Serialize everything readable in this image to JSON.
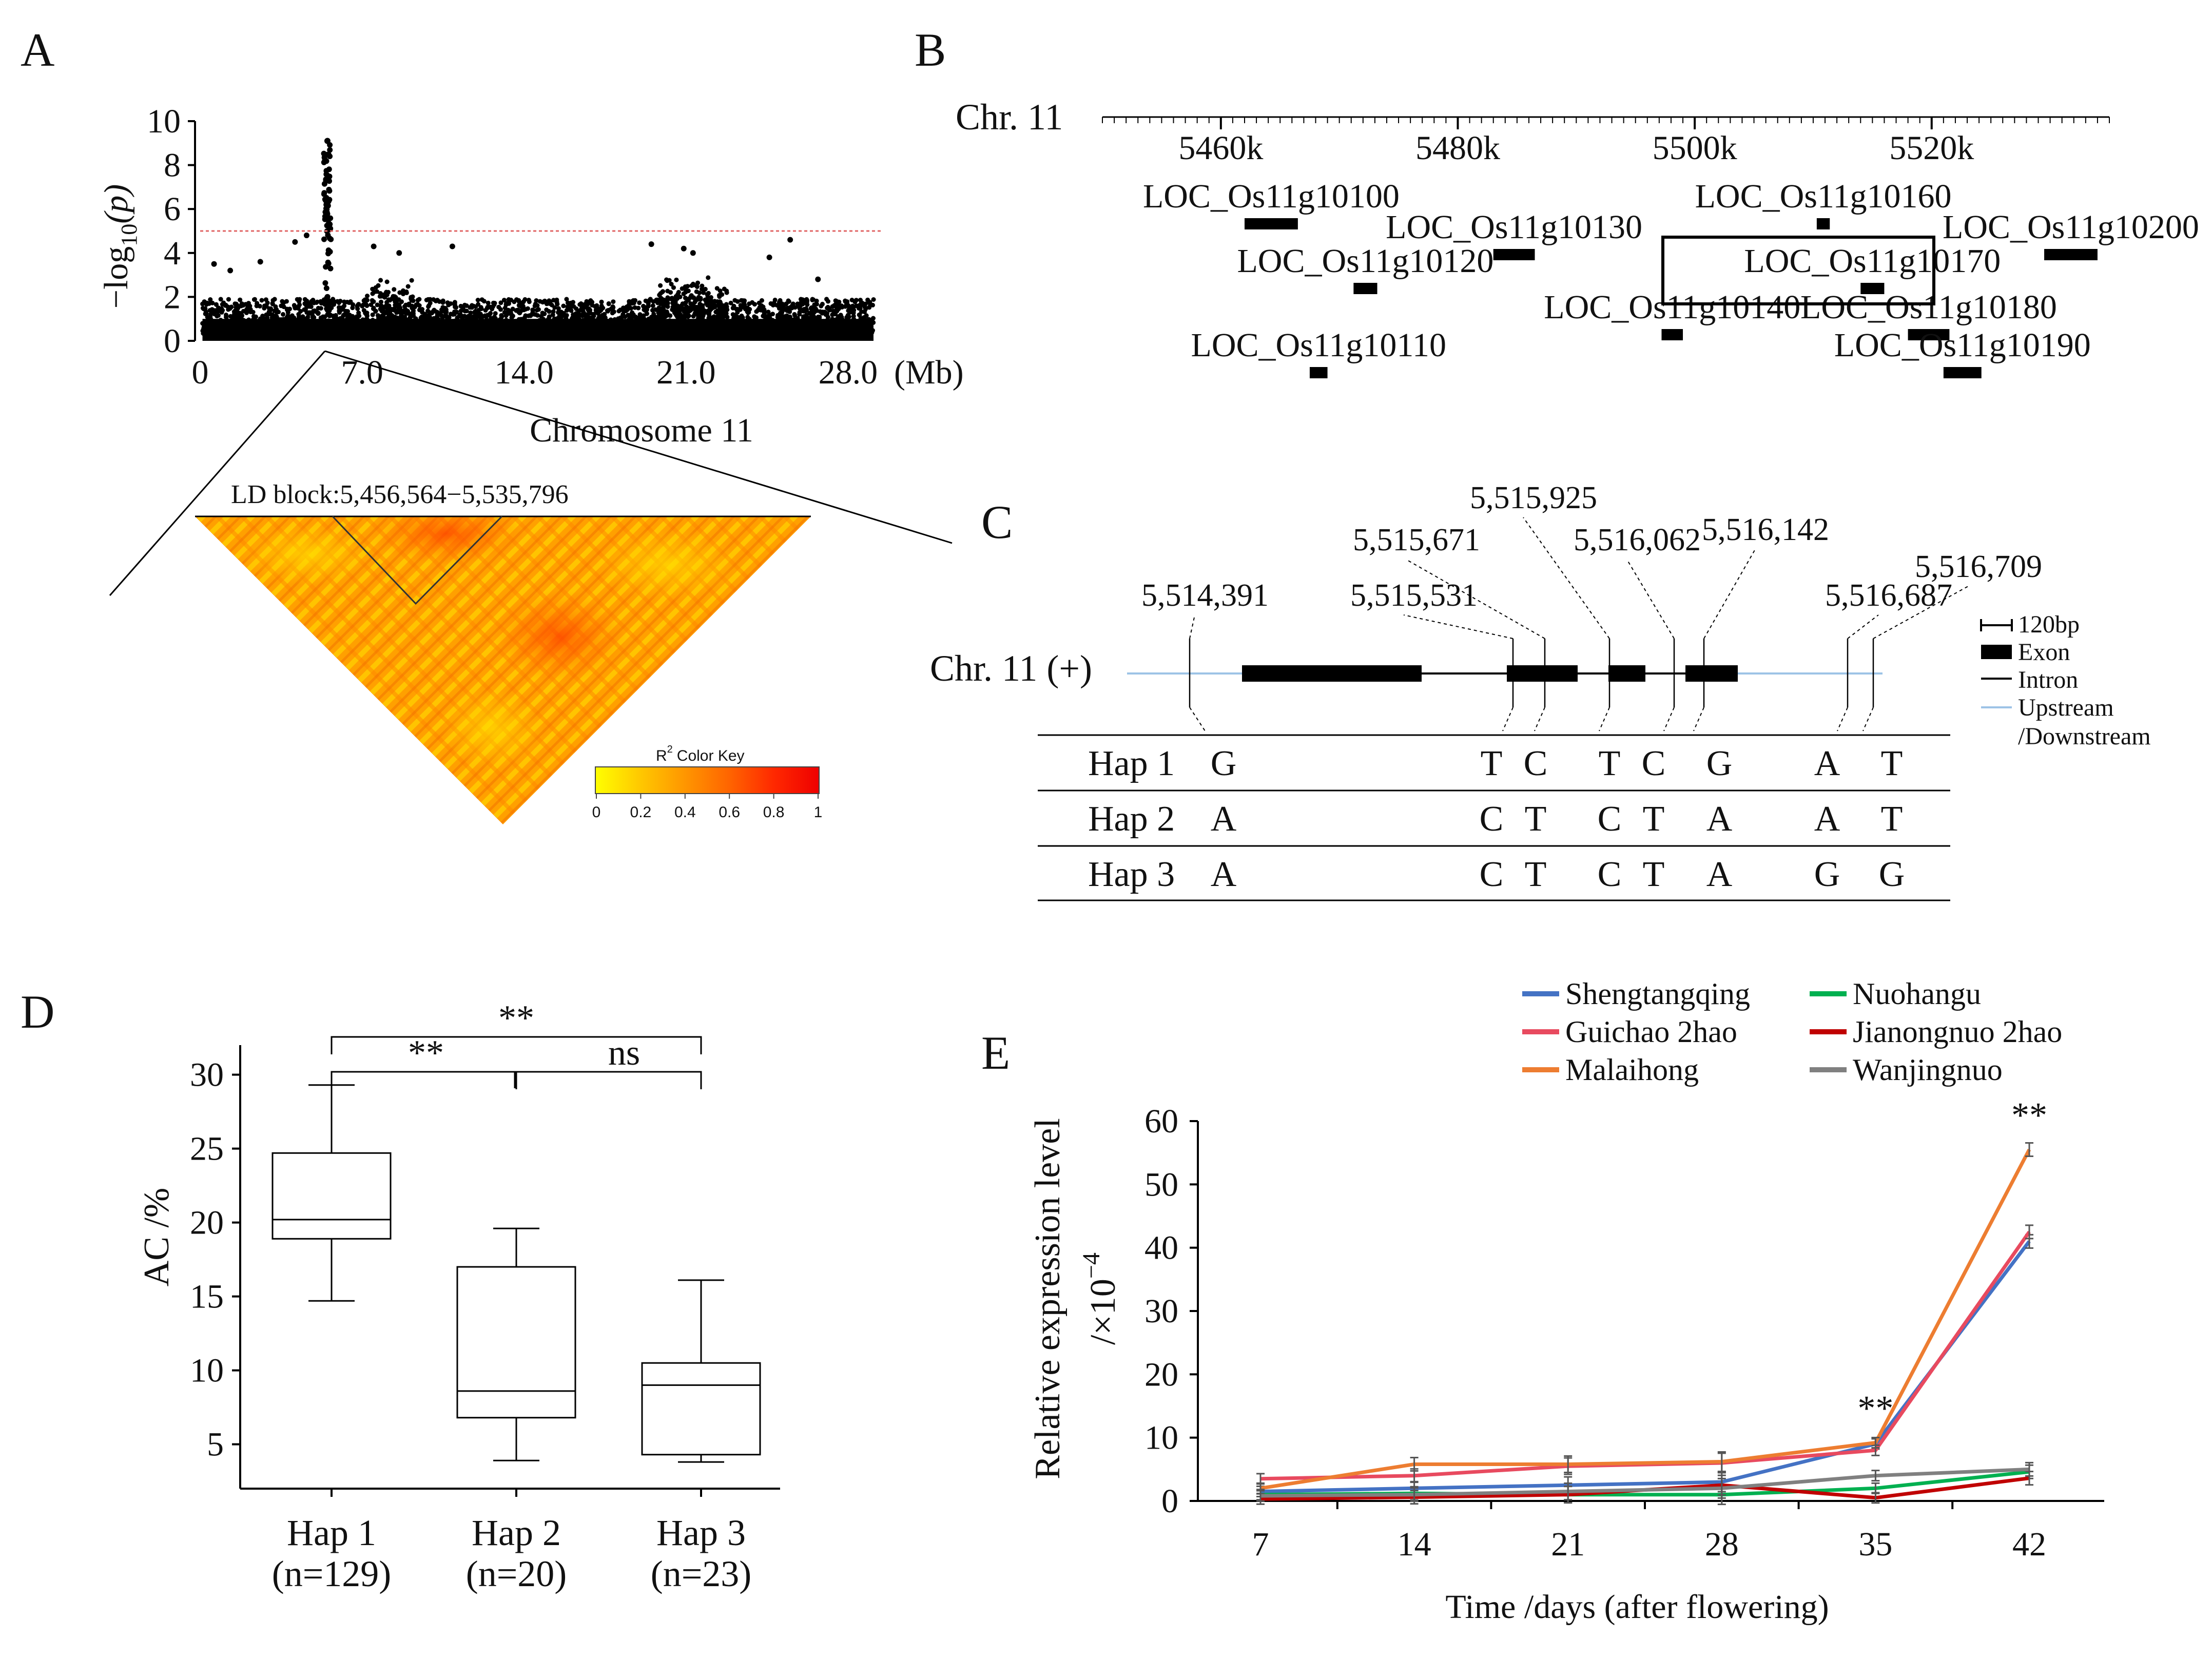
{
  "panels": {
    "a": "A",
    "b": "B",
    "c": "C",
    "d": "D",
    "e": "E"
  },
  "chart_data": [
    {
      "panel": "A",
      "type": "scatter",
      "title": "",
      "xlabel": "Chromosome 11",
      "xunit": "(Mb)",
      "ylabel_main": "−log",
      "ylabel_sub": "10",
      "ylabel_tail": "(p)",
      "xlim": [
        0,
        29.5
      ],
      "ylim": [
        0,
        10
      ],
      "xticks": [
        0,
        7,
        14,
        21,
        28
      ],
      "xtick_labels": [
        "0",
        "7.0",
        "14.0",
        "21.0",
        "28.0"
      ],
      "yticks": [
        0,
        2,
        4,
        6,
        8,
        10
      ],
      "ytick_labels": [
        "0",
        "2",
        "4",
        "6",
        "8",
        "10"
      ],
      "threshold": 5,
      "threshold_color": "#e06666",
      "peak": {
        "x": 5.5,
        "max": 9.1
      },
      "notable_points": [
        {
          "x": 0.6,
          "y": 3.5
        },
        {
          "x": 1.3,
          "y": 3.2
        },
        {
          "x": 2.6,
          "y": 3.6
        },
        {
          "x": 4.1,
          "y": 4.5
        },
        {
          "x": 4.6,
          "y": 4.8
        },
        {
          "x": 7.5,
          "y": 4.3
        },
        {
          "x": 8.6,
          "y": 4.0
        },
        {
          "x": 10.9,
          "y": 4.3
        },
        {
          "x": 19.5,
          "y": 4.4
        },
        {
          "x": 20.9,
          "y": 4.2
        },
        {
          "x": 21.3,
          "y": 4.0
        },
        {
          "x": 24.6,
          "y": 3.8
        },
        {
          "x": 25.5,
          "y": 4.6
        },
        {
          "x": 26.7,
          "y": 2.8
        }
      ]
    },
    {
      "panel": "A-LD",
      "type": "heatmap",
      "title": "LD block:5,456,564−5,535,796",
      "key_title": "R",
      "key_sup": "2",
      "key_label": "Color  Key",
      "key_ticks": [
        "0",
        "0.2",
        "0.4",
        "0.6",
        "0.8",
        "1"
      ],
      "key_colors": [
        "#ffff00",
        "#ffc800",
        "#ff9600",
        "#ff6400",
        "#ff2800",
        "#ee0000"
      ]
    },
    {
      "panel": "B",
      "type": "table",
      "chrom_label": "Chr. 11",
      "axis_range_k": [
        5450,
        5535
      ],
      "axis_ticks": [
        5460,
        5480,
        5500,
        5520
      ],
      "axis_tick_labels": [
        "5460k",
        "5480k",
        "5500k",
        "5520k"
      ],
      "highlighted_gene": "LOC_Os11g10170",
      "genes": [
        {
          "name": "LOC_Os11g10100",
          "start": 5462.0,
          "end": 5466.5,
          "row": 0
        },
        {
          "name": "LOC_Os11g10110",
          "start": 5467.5,
          "end": 5469.0,
          "row": 4
        },
        {
          "name": "LOC_Os11g10120",
          "start": 5471.2,
          "end": 5473.2,
          "row": 2
        },
        {
          "name": "LOC_Os11g10130",
          "start": 5483.0,
          "end": 5486.5,
          "row": 1
        },
        {
          "name": "LOC_Os11g10140",
          "start": 5497.2,
          "end": 5499.0,
          "row": 3
        },
        {
          "name": "LOC_Os11g10160",
          "start": 5510.3,
          "end": 5511.4,
          "row": 0
        },
        {
          "name": "LOC_Os11g10170",
          "start": 5514.0,
          "end": 5516.0,
          "row": 2
        },
        {
          "name": "LOC_Os11g10180",
          "start": 5518.0,
          "end": 5521.5,
          "row": 3
        },
        {
          "name": "LOC_Os11g10190",
          "start": 5521.0,
          "end": 5524.2,
          "row": 4
        },
        {
          "name": "LOC_Os11g10200",
          "start": 5529.5,
          "end": 5534.0,
          "row": 1
        }
      ]
    },
    {
      "panel": "C",
      "type": "table",
      "chrom_label": "Chr. 11 (+)",
      "legend": {
        "scale": "120bp",
        "exon": "Exon",
        "intron": "Intron",
        "upstream": "Upstream",
        "downstream": "/Downstream"
      },
      "snp_positions": [
        "5,514,391",
        "5,515,531",
        "5,515,671",
        "5,515,925",
        "5,516,062",
        "5,516,142",
        "5,516,687",
        "5,516,709"
      ],
      "haplotypes": [
        {
          "name": "Hap 1",
          "alleles": [
            "G",
            "T",
            "C",
            "T",
            "C",
            "G",
            "A",
            "T"
          ]
        },
        {
          "name": "Hap 2",
          "alleles": [
            "A",
            "C",
            "T",
            "C",
            "T",
            "A",
            "A",
            "T"
          ]
        },
        {
          "name": "Hap 3",
          "alleles": [
            "A",
            "C",
            "T",
            "C",
            "T",
            "A",
            "G",
            "G"
          ]
        }
      ]
    },
    {
      "panel": "D",
      "type": "bar",
      "subtype": "boxplot",
      "ylabel": "AC /%",
      "ylim": [
        2,
        32
      ],
      "yticks": [
        5,
        10,
        15,
        20,
        25,
        30
      ],
      "ytick_labels": [
        "5",
        "10",
        "15",
        "20",
        "25",
        "30"
      ],
      "categories": [
        "Hap 1",
        "Hap 2",
        "Hap 3"
      ],
      "category_counts": [
        "(n=129)",
        "(n=20)",
        "(n=23)"
      ],
      "boxes": [
        {
          "min": 14.7,
          "q1": 18.9,
          "median": 20.2,
          "q3": 24.7,
          "max": 29.3
        },
        {
          "min": 3.9,
          "q1": 6.8,
          "median": 8.6,
          "q3": 17.0,
          "max": 19.6
        },
        {
          "min": 3.8,
          "q1": 4.3,
          "median": 9.0,
          "q3": 10.5,
          "max": 16.1
        }
      ],
      "comparisons": [
        {
          "from": 0,
          "to": 2,
          "label": "**"
        },
        {
          "from": 0,
          "to": 1,
          "label": "**"
        },
        {
          "from": 1,
          "to": 2,
          "label": "ns"
        }
      ]
    },
    {
      "panel": "E",
      "type": "line",
      "ylabel": "Relative expression level",
      "ylabel2": "/×10",
      "ylabel2_sup": "−4",
      "xlabel": "Time /days  (after flowering)",
      "x": [
        7,
        14,
        21,
        28,
        35,
        42
      ],
      "ylim": [
        0,
        60
      ],
      "yticks": [
        0,
        10,
        20,
        30,
        40,
        50,
        60
      ],
      "ytick_labels": [
        "0",
        "10",
        "20",
        "30",
        "40",
        "50",
        "60"
      ],
      "significance": [
        {
          "x": 35,
          "label": "**"
        },
        {
          "x": 42,
          "label": "**"
        }
      ],
      "series": [
        {
          "name": "Shengtangqing",
          "color": "#4472c4",
          "values": [
            1.5,
            2.0,
            2.5,
            3.0,
            9.0,
            41.0
          ]
        },
        {
          "name": "Guichao 2hao",
          "color": "#e84a5f",
          "values": [
            3.5,
            4.0,
            5.5,
            6.0,
            8.0,
            42.5
          ]
        },
        {
          "name": "Malaihong",
          "color": "#ed7d31",
          "values": [
            2.0,
            5.8,
            5.8,
            6.2,
            9.2,
            55.5
          ]
        },
        {
          "name": "Nuohangu",
          "color": "#00b050",
          "values": [
            1.0,
            1.2,
            1.0,
            1.0,
            2.0,
            4.6
          ]
        },
        {
          "name": "Jianongnuo 2hao",
          "color": "#c00000",
          "values": [
            0.3,
            0.6,
            1.0,
            2.5,
            0.5,
            3.6
          ]
        },
        {
          "name": "Wanjingnuo",
          "color": "#808080",
          "values": [
            0.8,
            1.0,
            1.5,
            2.0,
            4.0,
            5.0
          ]
        }
      ]
    }
  ]
}
